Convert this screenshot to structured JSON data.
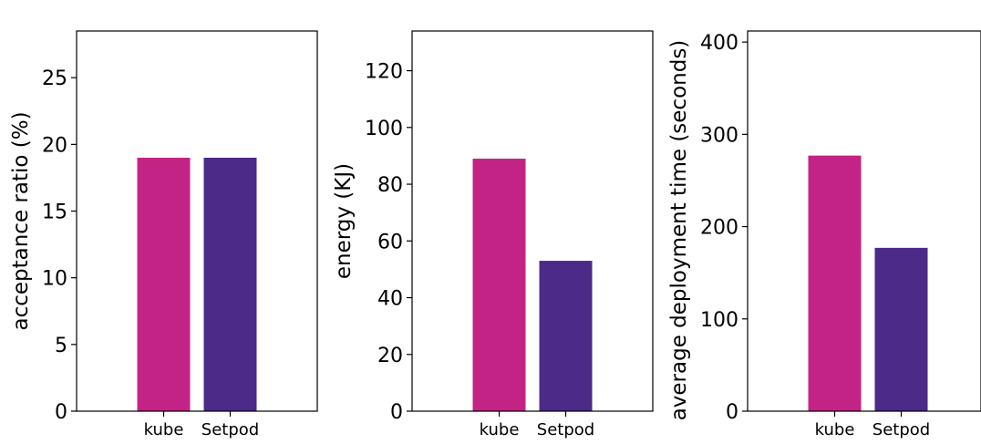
{
  "chart_data": [
    {
      "type": "bar",
      "categories": [
        "kube",
        "Setpod"
      ],
      "values": [
        19,
        19
      ],
      "colors": [
        "#c42386",
        "#4b2a88"
      ],
      "ylabel": "acceptance ratio (%)",
      "ylim": [
        0,
        28.5
      ],
      "yticks": [
        0,
        5,
        10,
        15,
        20,
        25
      ],
      "grid": false
    },
    {
      "type": "bar",
      "categories": [
        "kube",
        "Setpod"
      ],
      "values": [
        89,
        53
      ],
      "colors": [
        "#c42386",
        "#4b2a88"
      ],
      "ylabel": "energy (KJ)",
      "ylim": [
        0,
        134
      ],
      "yticks": [
        0,
        20,
        40,
        60,
        80,
        100,
        120
      ],
      "grid": false
    },
    {
      "type": "bar",
      "categories": [
        "kube",
        "Setpod"
      ],
      "values": [
        277,
        177
      ],
      "colors": [
        "#c42386",
        "#4b2a88"
      ],
      "ylabel": "average deployment time (seconds)",
      "ylim": [
        0,
        412
      ],
      "yticks": [
        0,
        100,
        200,
        300,
        400
      ],
      "grid": false
    }
  ]
}
